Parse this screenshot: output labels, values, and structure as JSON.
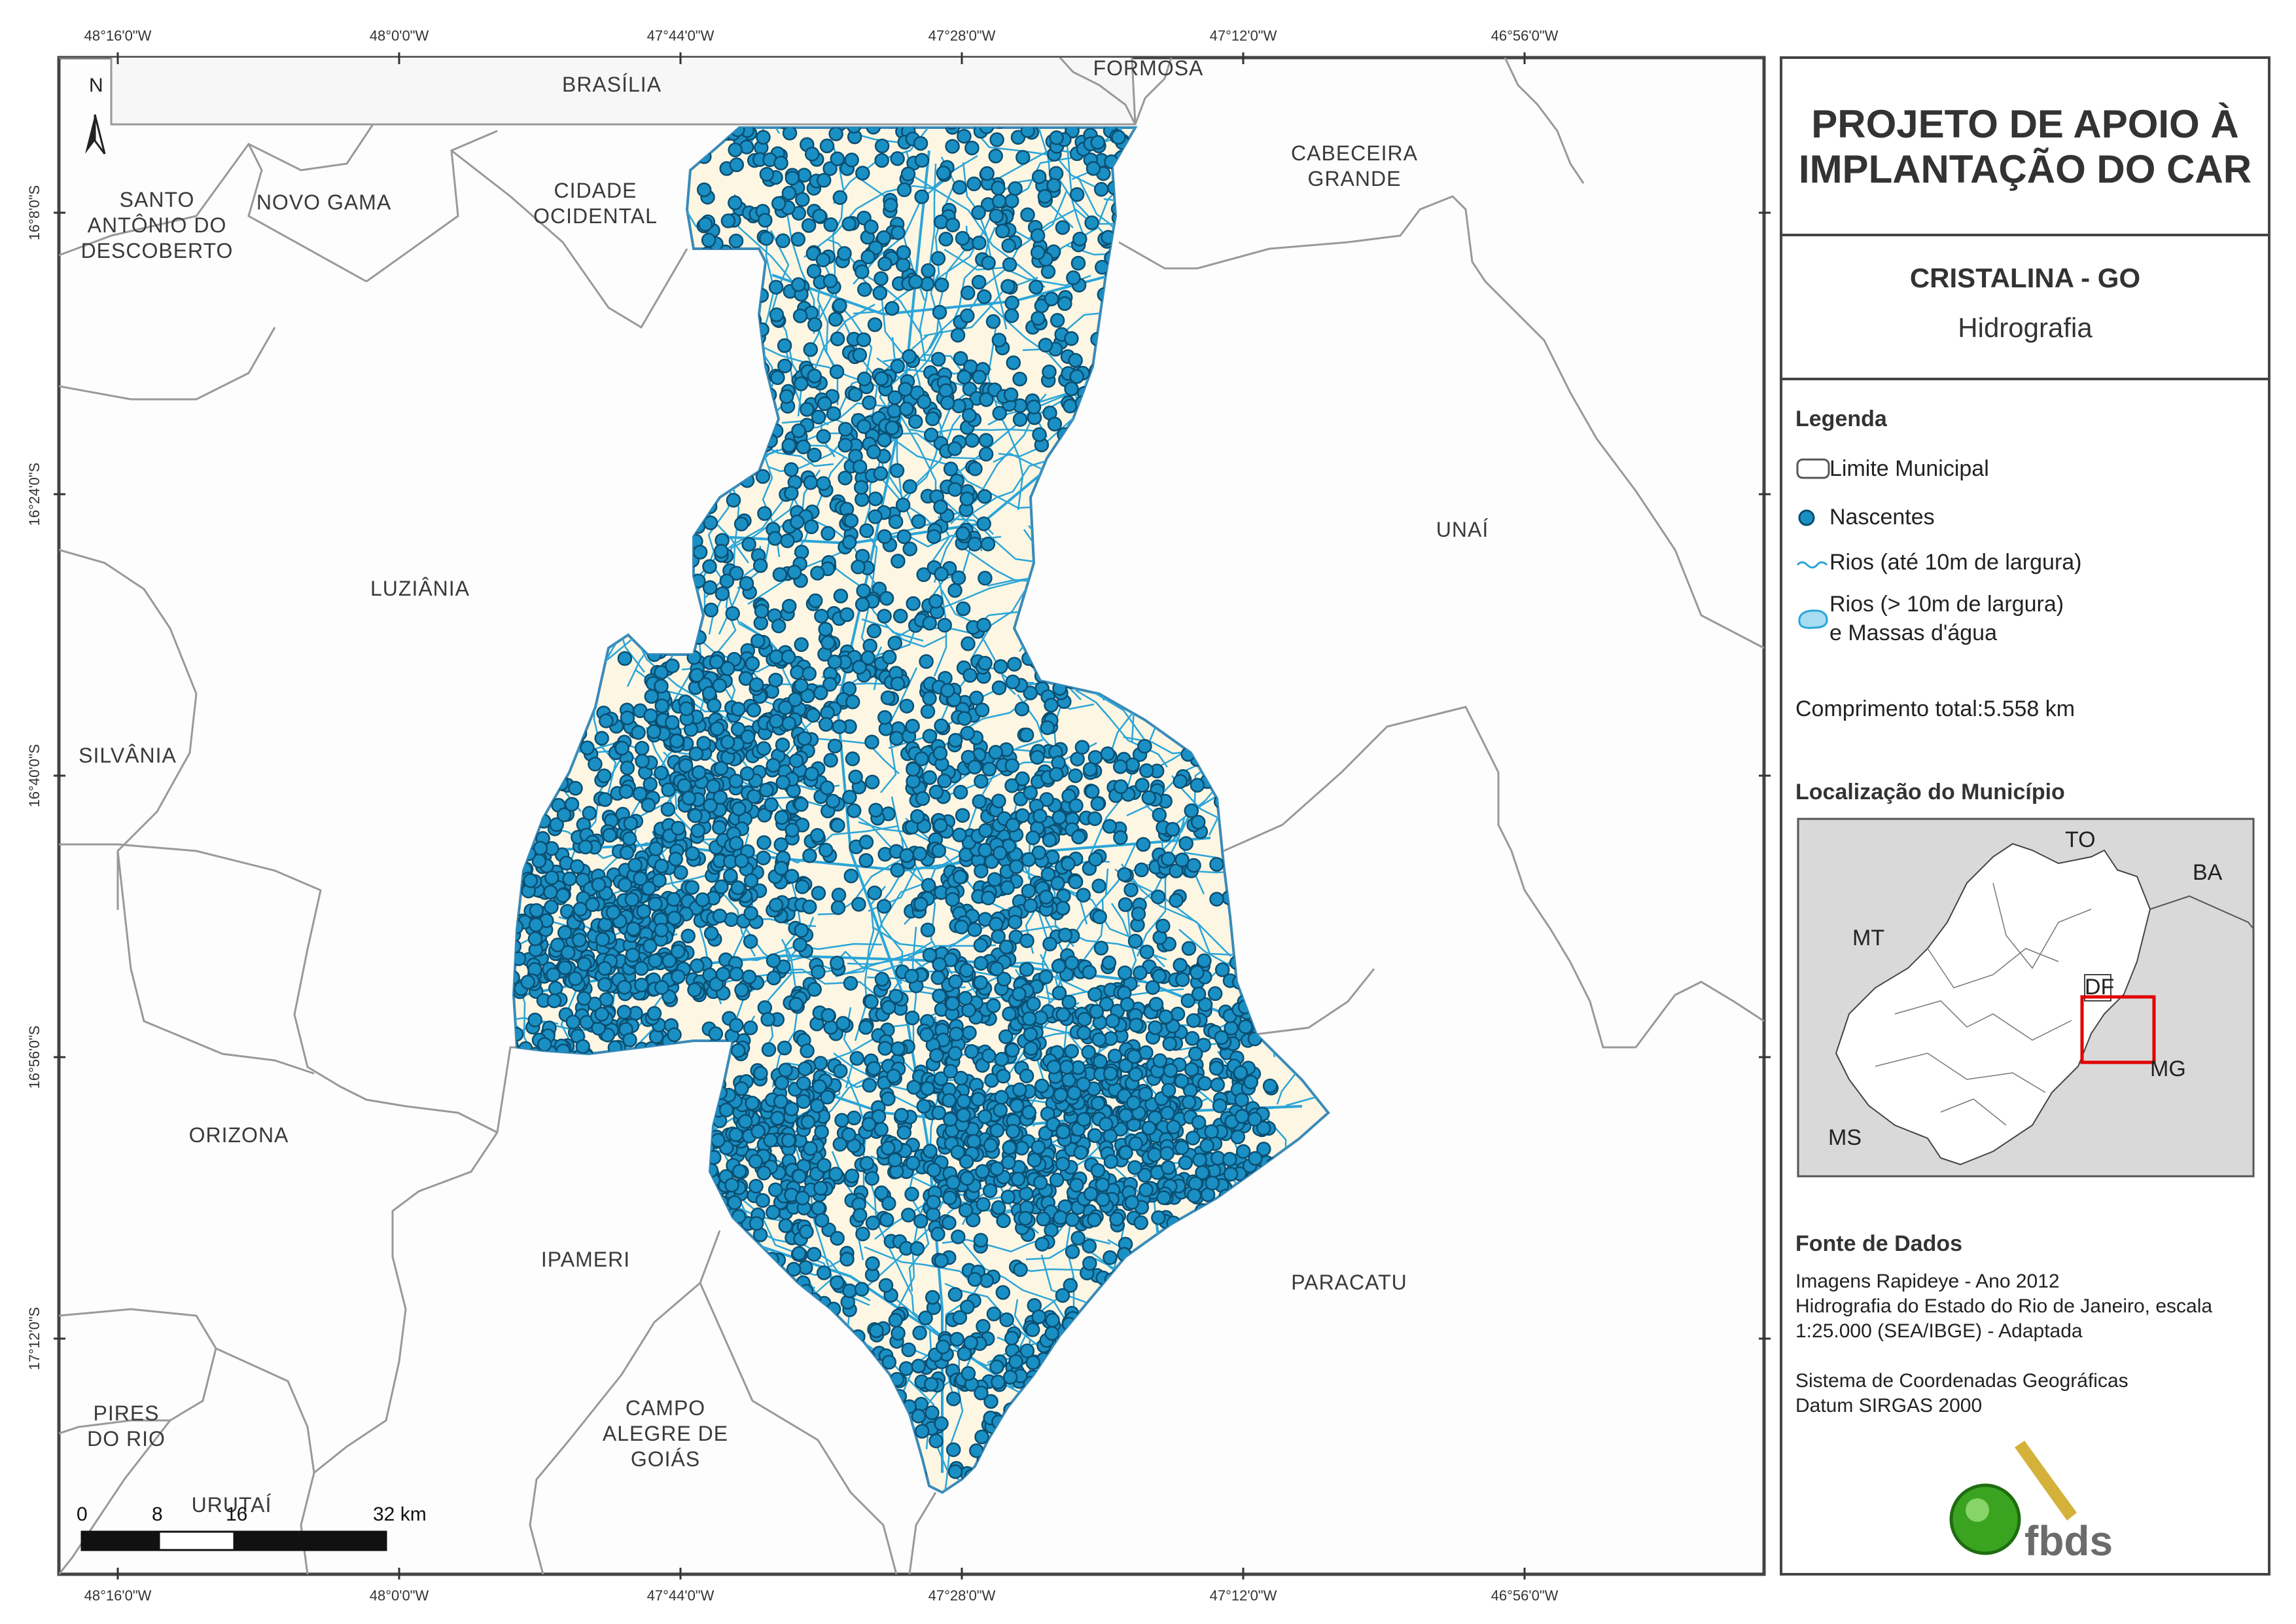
{
  "title": "PROJETO DE APOIO À IMPLANTAÇÃO DO CAR",
  "title_line1": "PROJETO DE APOIO À",
  "title_line2": "IMPLANTAÇÃO DO CAR",
  "municipality": "CRISTALINA - GO",
  "theme": "Hidrografia",
  "legend": {
    "heading": "Legenda",
    "items": [
      {
        "label": "Limite Municipal",
        "icon": "municipal-boundary-icon"
      },
      {
        "label": "Nascentes",
        "icon": "spring-point-icon",
        "color": "#1a8fc4"
      },
      {
        "label": "Rios (até 10m de largura)",
        "icon": "river-line-icon",
        "color": "#2aa5d8"
      },
      {
        "label_line1": "Rios (> 10m de largura)",
        "label_line2": "e Massas d'água",
        "icon": "water-body-icon",
        "color": "#a8dcf2"
      }
    ],
    "total_length": "Comprimento total:5.558 km"
  },
  "location": {
    "heading": "Localização do Município",
    "labels": [
      "TO",
      "BA",
      "MT",
      "DF",
      "MG",
      "MS"
    ]
  },
  "sources": {
    "heading": "Fonte de Dados",
    "lines": [
      "Imagens Rapideye - Ano 2012",
      "Hidrografia do Estado do Rio de Janeiro, escala",
      "1:25.000 (SEA/IBGE) - Adaptada",
      "",
      "Sistema de Coordenadas Geográficas",
      "Datum SIRGAS 2000"
    ]
  },
  "logo_text": "fbds",
  "north_label": "N",
  "scale": {
    "labels": [
      "0",
      "8",
      "16",
      "32 km"
    ]
  },
  "coords": {
    "lon": [
      "48°16'0\"W",
      "48°0'0\"W",
      "47°44'0\"W",
      "47°28'0\"W",
      "47°12'0\"W",
      "46°56'0\"W"
    ],
    "lat": [
      "16°8'0\"S",
      "16°24'0\"S",
      "16°40'0\"S",
      "16°56'0\"S",
      "17°12'0\"S"
    ]
  },
  "neighbors": [
    {
      "id": "brasilia",
      "lines": [
        "BRASÍLIA"
      ]
    },
    {
      "id": "formosa",
      "lines": [
        "FORMOSA"
      ]
    },
    {
      "id": "cabeceira-grande",
      "lines": [
        "CABECEIRA",
        "GRANDE"
      ]
    },
    {
      "id": "santo-antonio",
      "lines": [
        "SANTO",
        "ANTÔNIO DO",
        "DESCOBERTO"
      ]
    },
    {
      "id": "novo-gama",
      "lines": [
        "NOVO GAMA"
      ]
    },
    {
      "id": "cidade-ocidental",
      "lines": [
        "CIDADE",
        "OCIDENTAL"
      ]
    },
    {
      "id": "unai",
      "lines": [
        "UNAÍ"
      ]
    },
    {
      "id": "luziania",
      "lines": [
        "LUZIÂNIA"
      ]
    },
    {
      "id": "silvania",
      "lines": [
        "SILVÂNIA"
      ]
    },
    {
      "id": "orizona",
      "lines": [
        "ORIZONA"
      ]
    },
    {
      "id": "ipameri",
      "lines": [
        "IPAMERI"
      ]
    },
    {
      "id": "paracatu",
      "lines": [
        "PARACATU"
      ]
    },
    {
      "id": "pires-do-rio",
      "lines": [
        "PIRES",
        "DO RIO"
      ]
    },
    {
      "id": "campo-alegre",
      "lines": [
        "CAMPO",
        "ALEGRE DE",
        "GOIÁS"
      ]
    },
    {
      "id": "urutai",
      "lines": [
        "URUTAÍ"
      ]
    }
  ]
}
